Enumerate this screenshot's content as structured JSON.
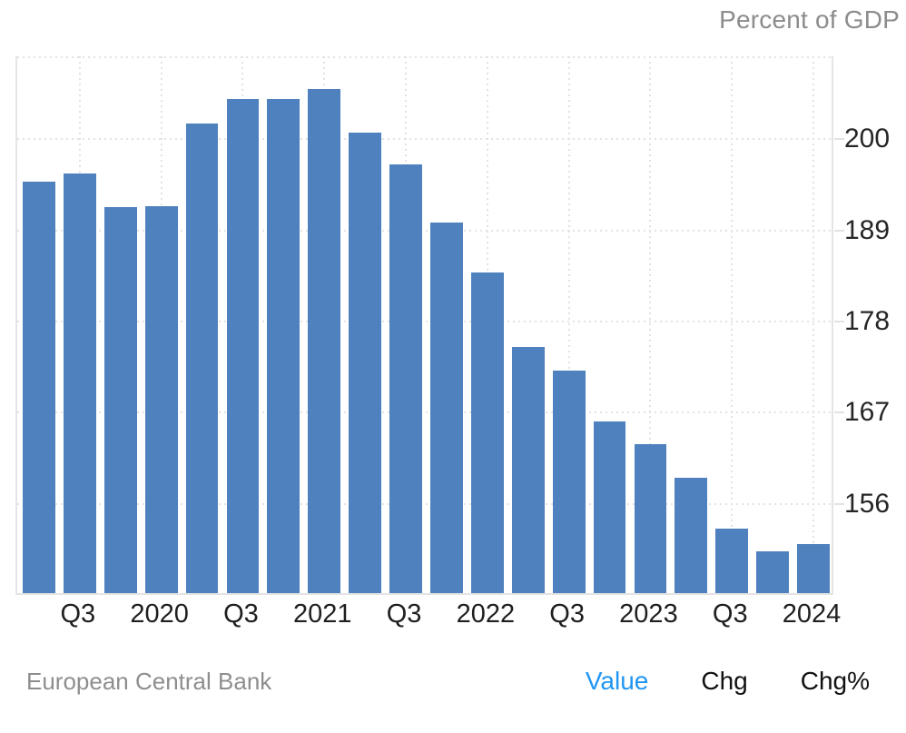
{
  "header": {
    "unit_label": "Percent of GDP"
  },
  "footer": {
    "source": "European Central Bank",
    "modes": [
      {
        "label": "Value",
        "active": true
      },
      {
        "label": "Chg",
        "active": false
      },
      {
        "label": "Chg%",
        "active": false
      }
    ]
  },
  "colors": {
    "bar": "#4e81bd",
    "active_mode": "#2196f3",
    "grid": "#e2e2e2",
    "axis_text": "#262626",
    "muted_text": "#8c8c8c"
  },
  "chart_data": {
    "type": "bar",
    "title": "",
    "ylabel": "Percent of GDP",
    "source": "European Central Bank",
    "categories": [
      "2019-Q2",
      "2019-Q3",
      "2019-Q4",
      "2020-Q1",
      "2020-Q2",
      "2020-Q3",
      "2020-Q4",
      "2021-Q1",
      "2021-Q2",
      "2021-Q3",
      "2021-Q4",
      "2022-Q1",
      "2022-Q2",
      "2022-Q3",
      "2022-Q4",
      "2023-Q1",
      "2023-Q2",
      "2023-Q3",
      "2023-Q4",
      "2024-Q1"
    ],
    "values": [
      194.7,
      195.6,
      191.6,
      191.7,
      201.7,
      204.6,
      204.6,
      205.8,
      200.6,
      196.7,
      189.7,
      183.7,
      174.7,
      171.9,
      165.7,
      163.0,
      158.9,
      152.8,
      150.0,
      150.9
    ],
    "x_tick_labels": [
      "Q3",
      "2020",
      "Q3",
      "2021",
      "Q3",
      "2022",
      "Q3",
      "2023",
      "Q3",
      "2024"
    ],
    "y_ticks": [
      200,
      189,
      178,
      167,
      156
    ],
    "ylim": [
      145,
      210
    ],
    "grid": "dotted",
    "legend": "none",
    "bar_color": "#4e81bd"
  }
}
